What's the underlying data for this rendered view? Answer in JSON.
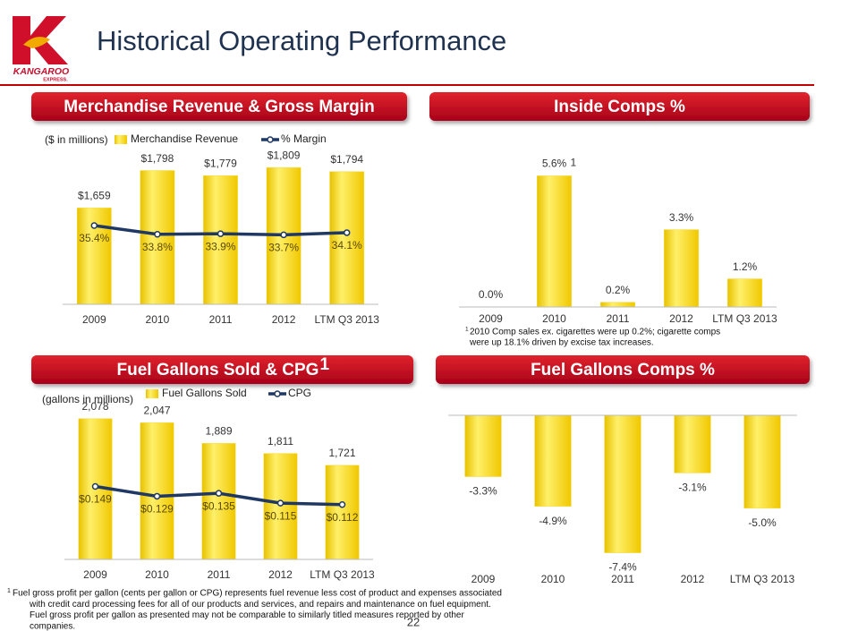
{
  "title": "Historical Operating Performance",
  "logo": {
    "name": "KANGAROO",
    "tagline": "EXPRESS."
  },
  "page_number": "22",
  "footnote": {
    "marker": "1",
    "lines": [
      "Fuel gross profit per gallon (cents per gallon or CPG) represents fuel revenue less cost of product and expenses associated",
      "with credit card processing fees for all of our products and services, and repairs and maintenance on fuel equipment.",
      "Fuel gross profit per gallon as presented may not be comparable to similarly titled measures reported by other",
      "companies."
    ]
  },
  "chart_data": [
    {
      "type": "combo",
      "title": "Merchandise Revenue & Gross Margin",
      "subtitle": "($ in millions)",
      "categories": [
        "2009",
        "2010",
        "2011",
        "2012",
        "LTM Q3 2013"
      ],
      "ylim": [
        1300,
        1850
      ],
      "y2lim": [
        21,
        48
      ],
      "series": [
        {
          "name": "Merchandise Revenue",
          "type": "bar",
          "color": "#f5d000",
          "values": [
            1659,
            1798,
            1779,
            1809,
            1794
          ],
          "value_labels": [
            "$1,659",
            "$1,798",
            "$1,779",
            "$1,809",
            "$1,794"
          ]
        },
        {
          "name": "% Margin",
          "type": "line",
          "axis": "y2",
          "color": "#1f3864",
          "values": [
            35.4,
            33.8,
            33.9,
            33.7,
            34.1
          ],
          "value_labels": [
            "35.4%",
            "33.8%",
            "33.9%",
            "33.7%",
            "34.1%"
          ]
        }
      ]
    },
    {
      "type": "bar",
      "title": "Inside Comps %",
      "categories": [
        "2009",
        "2010",
        "2011",
        "2012",
        "LTM Q3 2013"
      ],
      "ylim": [
        0,
        6
      ],
      "color": "#f5d000",
      "values": [
        0.0,
        5.6,
        0.2,
        3.3,
        1.2
      ],
      "value_labels": [
        "0.0%",
        "5.6%",
        "0.2%",
        "3.3%",
        "1.2%"
      ],
      "annotations": [
        {
          "x": "2010",
          "text": "1"
        }
      ],
      "footnote": {
        "marker": "1",
        "lines": [
          "2010 Comp sales ex. cigarettes were up 0.2%; cigarette comps",
          "were up 18.1% driven by excise tax increases."
        ]
      }
    },
    {
      "type": "combo",
      "title": "Fuel Gallons Sold & CPG",
      "title_note": "1",
      "subtitle": "(gallons in millions)",
      "categories": [
        "2009",
        "2010",
        "2011",
        "2012",
        "LTM Q3 2013"
      ],
      "ylim": [
        1000,
        2200
      ],
      "y2lim": [
        0,
        0.32
      ],
      "series": [
        {
          "name": "Fuel Gallons Sold",
          "type": "bar",
          "color": "#f5d000",
          "values": [
            2078,
            2047,
            1889,
            1811,
            1721
          ],
          "value_labels": [
            "2,078",
            "2,047",
            "1,889",
            "1,811",
            "1,721"
          ]
        },
        {
          "name": "CPG",
          "type": "line",
          "axis": "y2",
          "color": "#1f3864",
          "values": [
            0.149,
            0.129,
            0.135,
            0.115,
            0.112
          ],
          "value_labels": [
            "$0.149",
            "$0.129",
            "$0.135",
            "$0.115",
            "$0.112"
          ]
        }
      ]
    },
    {
      "type": "bar",
      "title": "Fuel Gallons Comps %",
      "categories": [
        "2009",
        "2010",
        "2011",
        "2012",
        "LTM Q3 2013"
      ],
      "ylim": [
        -8,
        0
      ],
      "color": "#f5d000",
      "values": [
        -3.3,
        -4.9,
        -7.4,
        -3.1,
        -5.0
      ],
      "value_labels": [
        "-3.3%",
        "-4.9%",
        "-7.4%",
        "-3.1%",
        "-5.0%"
      ]
    }
  ]
}
